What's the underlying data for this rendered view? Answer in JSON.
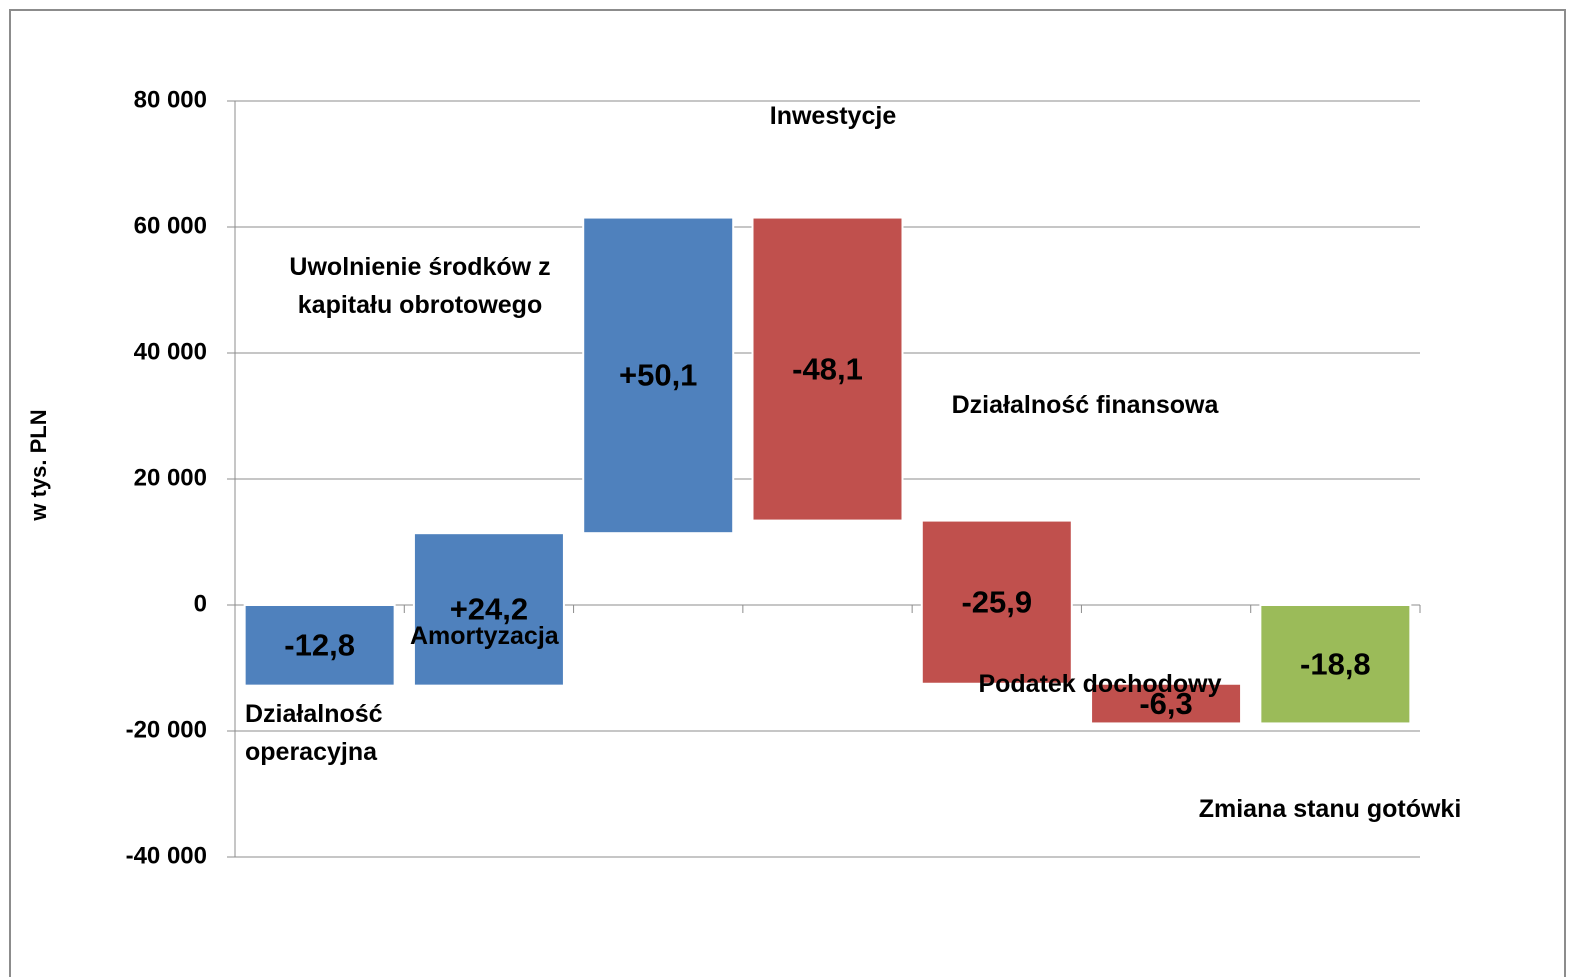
{
  "chart_data": {
    "type": "waterfall",
    "y_label": "w tys. PLN",
    "categories": [
      "Działalność operacyjna",
      "Amortyzacja",
      "Uwolnienie środków z kapitału obrotowego",
      "Inwestycje",
      "Działalność finansowa",
      "Podatek dochodowy",
      "Zmiana stanu gotówki"
    ],
    "values": [
      -12800,
      24200,
      50100,
      -48100,
      -25900,
      -6300,
      -18800
    ],
    "value_labels": [
      "-12,8",
      "+24,2",
      "+50,1",
      "-48,1",
      "-25,9",
      "-6,3",
      "-18,8"
    ],
    "colors": [
      "#4f81bd",
      "#4f81bd",
      "#4f81bd",
      "#c0504d",
      "#c0504d",
      "#c0504d",
      "#9bbb59"
    ],
    "last_is_total": true,
    "ylim": [
      -40000,
      80000
    ],
    "yticks": [
      {
        "value": -40000,
        "label": "-40 000"
      },
      {
        "value": -20000,
        "label": "-20 000"
      },
      0,
      {
        "value": 20000,
        "label": "20 000"
      },
      {
        "value": 40000,
        "label": "40 000"
      },
      {
        "value": 60000,
        "label": "60 000"
      },
      {
        "value": 80000,
        "label": "80 000"
      }
    ],
    "grid": true
  }
}
